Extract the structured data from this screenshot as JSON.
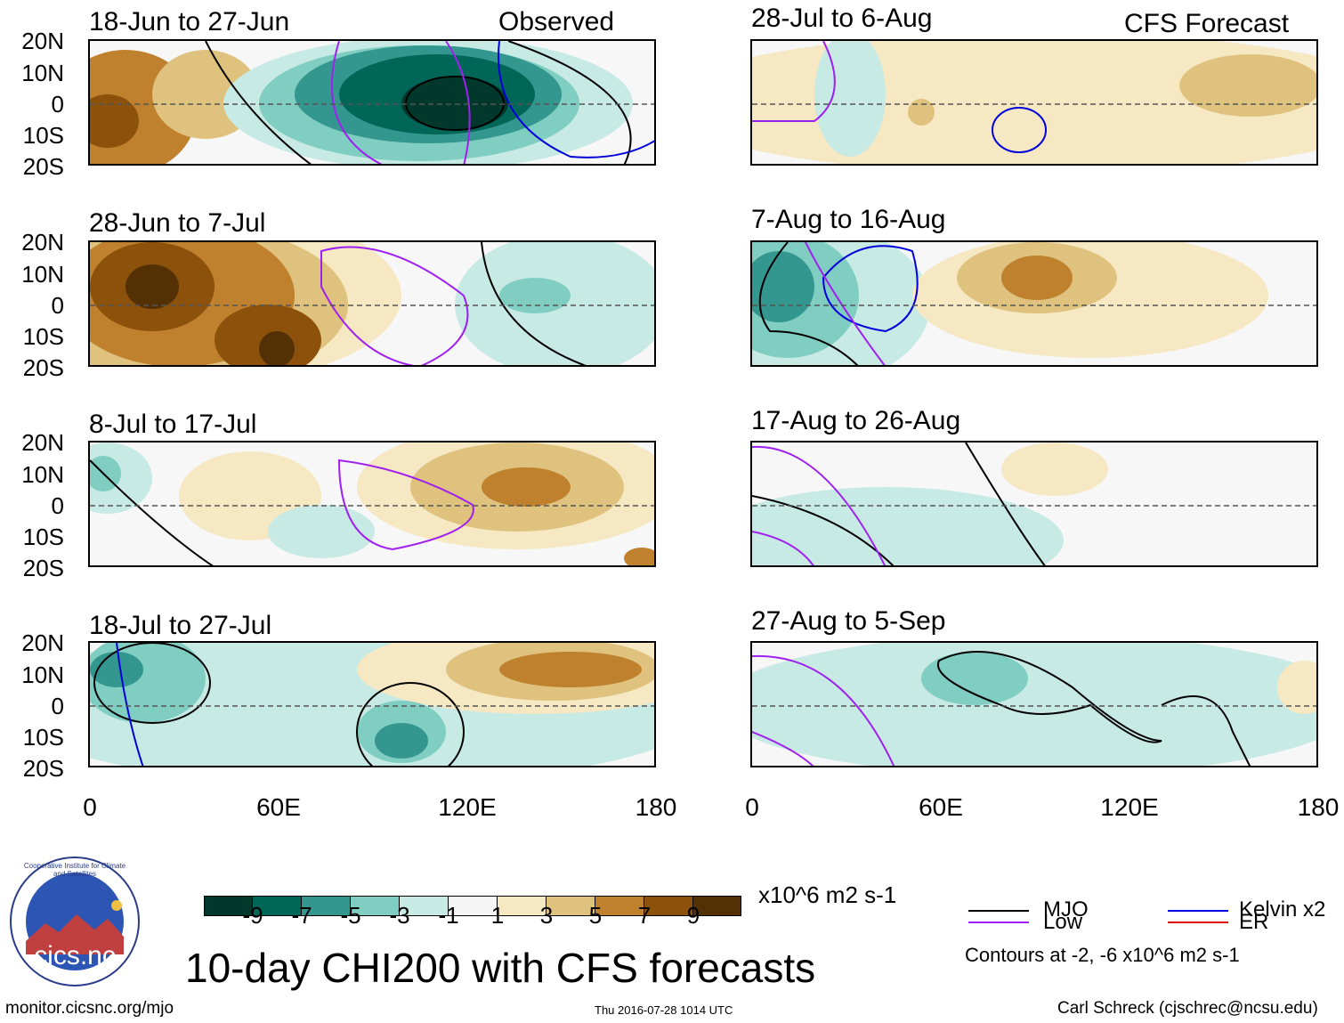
{
  "header": {
    "observed_label": "Observed",
    "forecast_label": "CFS Forecast"
  },
  "panels_left": [
    {
      "title": "18-Jun to 27-Jun"
    },
    {
      "title": "28-Jun to 7-Jul"
    },
    {
      "title": "8-Jul to 17-Jul"
    },
    {
      "title": "18-Jul to 27-Jul"
    }
  ],
  "panels_right": [
    {
      "title": "28-Jul to 6-Aug"
    },
    {
      "title": "7-Aug to 16-Aug"
    },
    {
      "title": "17-Aug to 26-Aug"
    },
    {
      "title": "27-Aug to 5-Sep"
    }
  ],
  "y_labels": [
    "20N",
    "10N",
    "0",
    "10S",
    "20S"
  ],
  "x_labels": [
    "0",
    "60E",
    "120E",
    "180"
  ],
  "colorbar": {
    "colors": [
      "#00382c",
      "#006657",
      "#34978f",
      "#80cdc1",
      "#c7eae5",
      "#f5f5f5",
      "#f6e8c3",
      "#dfc27d",
      "#bf812d",
      "#8c510a",
      "#543005"
    ],
    "labels": [
      "-9",
      "-7",
      "-5",
      "-3",
      "-1",
      "1",
      "3",
      "5",
      "7",
      "9"
    ],
    "units": "x10^6 m2 s-1"
  },
  "legend": {
    "mjo": "MJO",
    "kelvin": "Kelvin x2",
    "low": "Low",
    "er": "ER",
    "mjo_color": "#000000",
    "kelvin_color": "#0000dd",
    "low_color": "#a020f0",
    "er_color": "#dd0000",
    "contours_note": "Contours at -2, -6 x10^6 m2 s-1"
  },
  "logo": {
    "text": "cics.nc",
    "ring_text": "Cooperative Institute for Climate and Satellites"
  },
  "main_title": "10-day CHI200 with CFS forecasts",
  "footer": {
    "url": "monitor.cicsnc.org/mjo",
    "timestamp": "Thu 2016-07-28 1014 UTC",
    "author": "Carl Schreck (cjschrec@ncsu.edu)"
  }
}
